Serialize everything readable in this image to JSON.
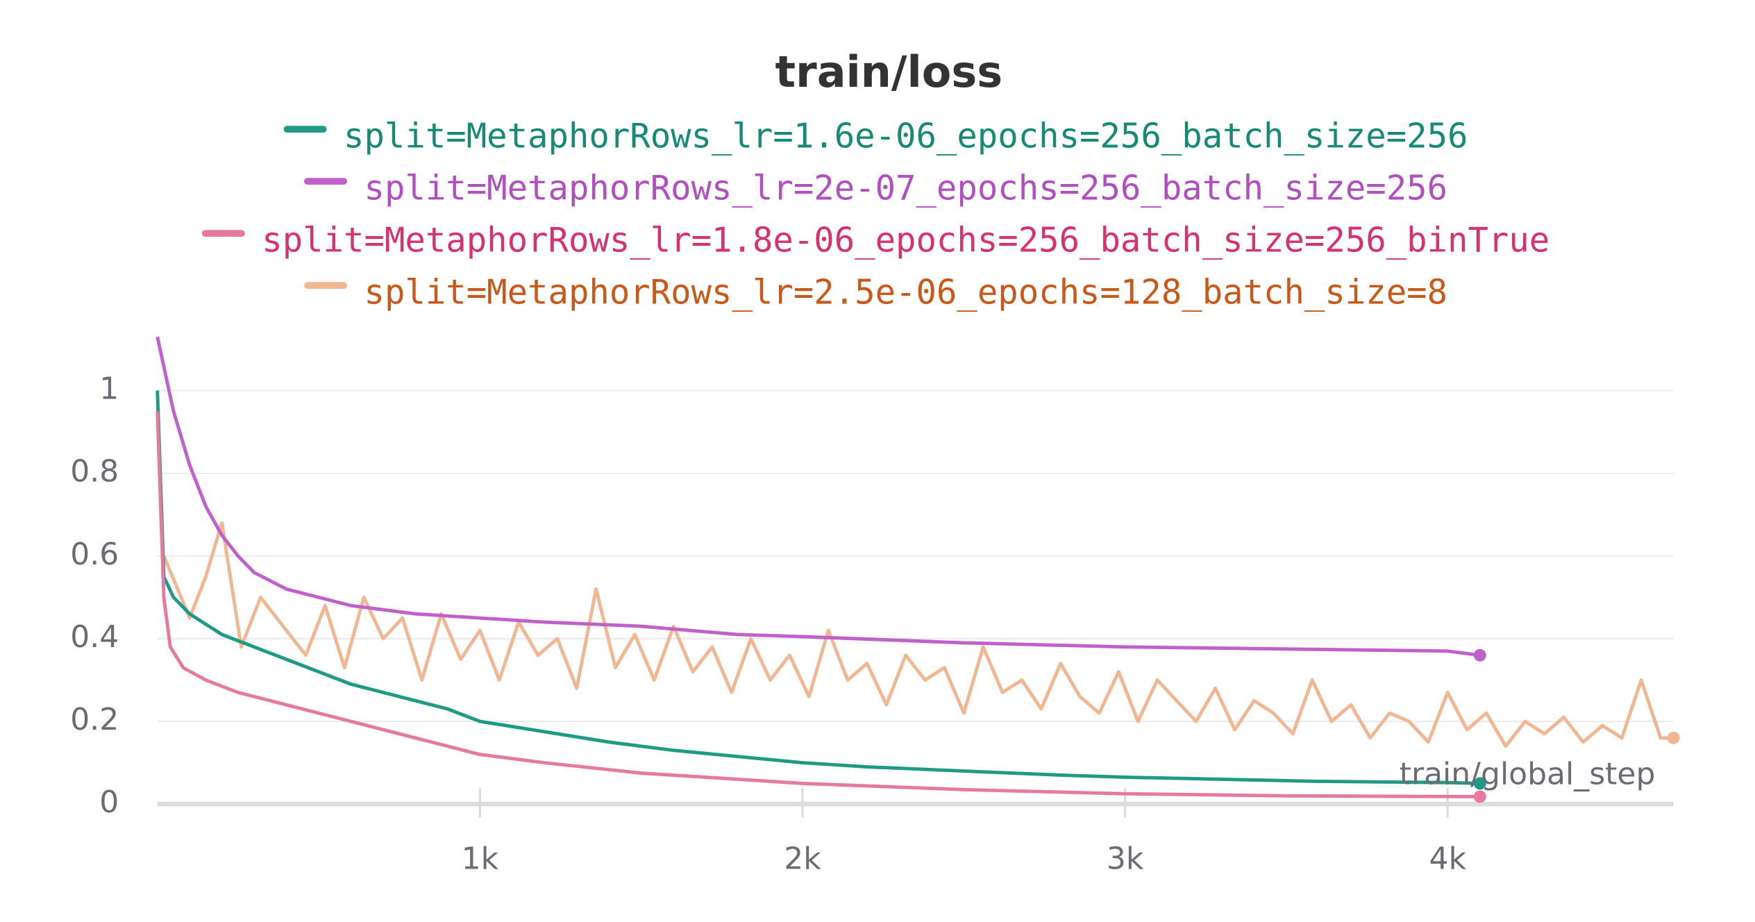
{
  "chart_data": {
    "type": "line",
    "title": "train/loss",
    "x_label": "train/global_step",
    "xlim": [
      0,
      4700
    ],
    "ylim": [
      0,
      1.15
    ],
    "xticks": [
      {
        "value": 1000,
        "label": "1k"
      },
      {
        "value": 2000,
        "label": "2k"
      },
      {
        "value": 3000,
        "label": "3k"
      },
      {
        "value": 4000,
        "label": "4k"
      }
    ],
    "yticks": [
      0,
      0.2,
      0.4,
      0.6,
      0.8,
      1
    ],
    "grid": true,
    "legend": "top",
    "series": [
      {
        "name": "split=MetaphorRows_lr=1.6e-06_epochs=256_batch_size=256",
        "color": "#1f9a85",
        "text_color": "#178a76",
        "x": [
          0,
          20,
          50,
          100,
          200,
          300,
          400,
          500,
          600,
          700,
          800,
          900,
          1000,
          1200,
          1400,
          1600,
          1800,
          2000,
          2200,
          2500,
          2800,
          3000,
          3300,
          3600,
          4000,
          4100
        ],
        "values": [
          1.0,
          0.55,
          0.5,
          0.46,
          0.41,
          0.38,
          0.35,
          0.32,
          0.29,
          0.27,
          0.25,
          0.23,
          0.2,
          0.175,
          0.15,
          0.13,
          0.115,
          0.1,
          0.09,
          0.08,
          0.07,
          0.065,
          0.06,
          0.055,
          0.052,
          0.05
        ]
      },
      {
        "name": "split=MetaphorRows_lr=2e-07_epochs=256_batch_size=256",
        "color": "#c061cb",
        "text_color": "#b24fc0",
        "x": [
          0,
          50,
          100,
          150,
          200,
          250,
          300,
          400,
          500,
          600,
          800,
          1000,
          1200,
          1500,
          1800,
          2000,
          2500,
          3000,
          3500,
          4000,
          4100
        ],
        "values": [
          1.13,
          0.95,
          0.82,
          0.72,
          0.65,
          0.6,
          0.56,
          0.52,
          0.5,
          0.48,
          0.46,
          0.45,
          0.44,
          0.43,
          0.41,
          0.405,
          0.39,
          0.38,
          0.375,
          0.37,
          0.36
        ]
      },
      {
        "name": "split=MetaphorRows_lr=1.8e-06_epochs=256_batch_size=256_binTrue",
        "color": "#e5799f",
        "text_color": "#d6336c",
        "x": [
          0,
          20,
          40,
          80,
          150,
          250,
          400,
          600,
          800,
          1000,
          1200,
          1500,
          2000,
          2500,
          3000,
          3500,
          4100
        ],
        "values": [
          0.95,
          0.5,
          0.38,
          0.33,
          0.3,
          0.27,
          0.24,
          0.2,
          0.16,
          0.12,
          0.1,
          0.075,
          0.05,
          0.035,
          0.025,
          0.02,
          0.018
        ]
      },
      {
        "name": "split=MetaphorRows_lr=2.5e-06_epochs=128_batch_size=8",
        "color": "#f0b792",
        "text_color": "#c75a1a",
        "x": [
          20,
          100,
          150,
          200,
          260,
          320,
          400,
          460,
          520,
          580,
          640,
          700,
          760,
          820,
          880,
          940,
          1000,
          1060,
          1120,
          1180,
          1240,
          1300,
          1360,
          1420,
          1480,
          1540,
          1600,
          1660,
          1720,
          1780,
          1840,
          1900,
          1960,
          2020,
          2080,
          2140,
          2200,
          2260,
          2320,
          2380,
          2440,
          2500,
          2560,
          2620,
          2680,
          2740,
          2800,
          2860,
          2920,
          2980,
          3040,
          3100,
          3160,
          3220,
          3280,
          3340,
          3400,
          3460,
          3520,
          3580,
          3640,
          3700,
          3760,
          3820,
          3880,
          3940,
          4000,
          4060,
          4120,
          4180,
          4240,
          4300,
          4360,
          4420,
          4480,
          4540,
          4600,
          4660,
          4700
        ],
        "values": [
          0.6,
          0.45,
          0.55,
          0.68,
          0.38,
          0.5,
          0.42,
          0.36,
          0.48,
          0.33,
          0.5,
          0.4,
          0.45,
          0.3,
          0.46,
          0.35,
          0.42,
          0.3,
          0.44,
          0.36,
          0.4,
          0.28,
          0.52,
          0.33,
          0.41,
          0.3,
          0.43,
          0.32,
          0.38,
          0.27,
          0.4,
          0.3,
          0.36,
          0.26,
          0.42,
          0.3,
          0.34,
          0.24,
          0.36,
          0.3,
          0.33,
          0.22,
          0.38,
          0.27,
          0.3,
          0.23,
          0.34,
          0.26,
          0.22,
          0.32,
          0.2,
          0.3,
          0.25,
          0.2,
          0.28,
          0.18,
          0.25,
          0.22,
          0.17,
          0.3,
          0.2,
          0.24,
          0.16,
          0.22,
          0.2,
          0.15,
          0.27,
          0.18,
          0.22,
          0.14,
          0.2,
          0.17,
          0.21,
          0.15,
          0.19,
          0.16,
          0.3,
          0.16,
          0.16
        ]
      }
    ]
  }
}
